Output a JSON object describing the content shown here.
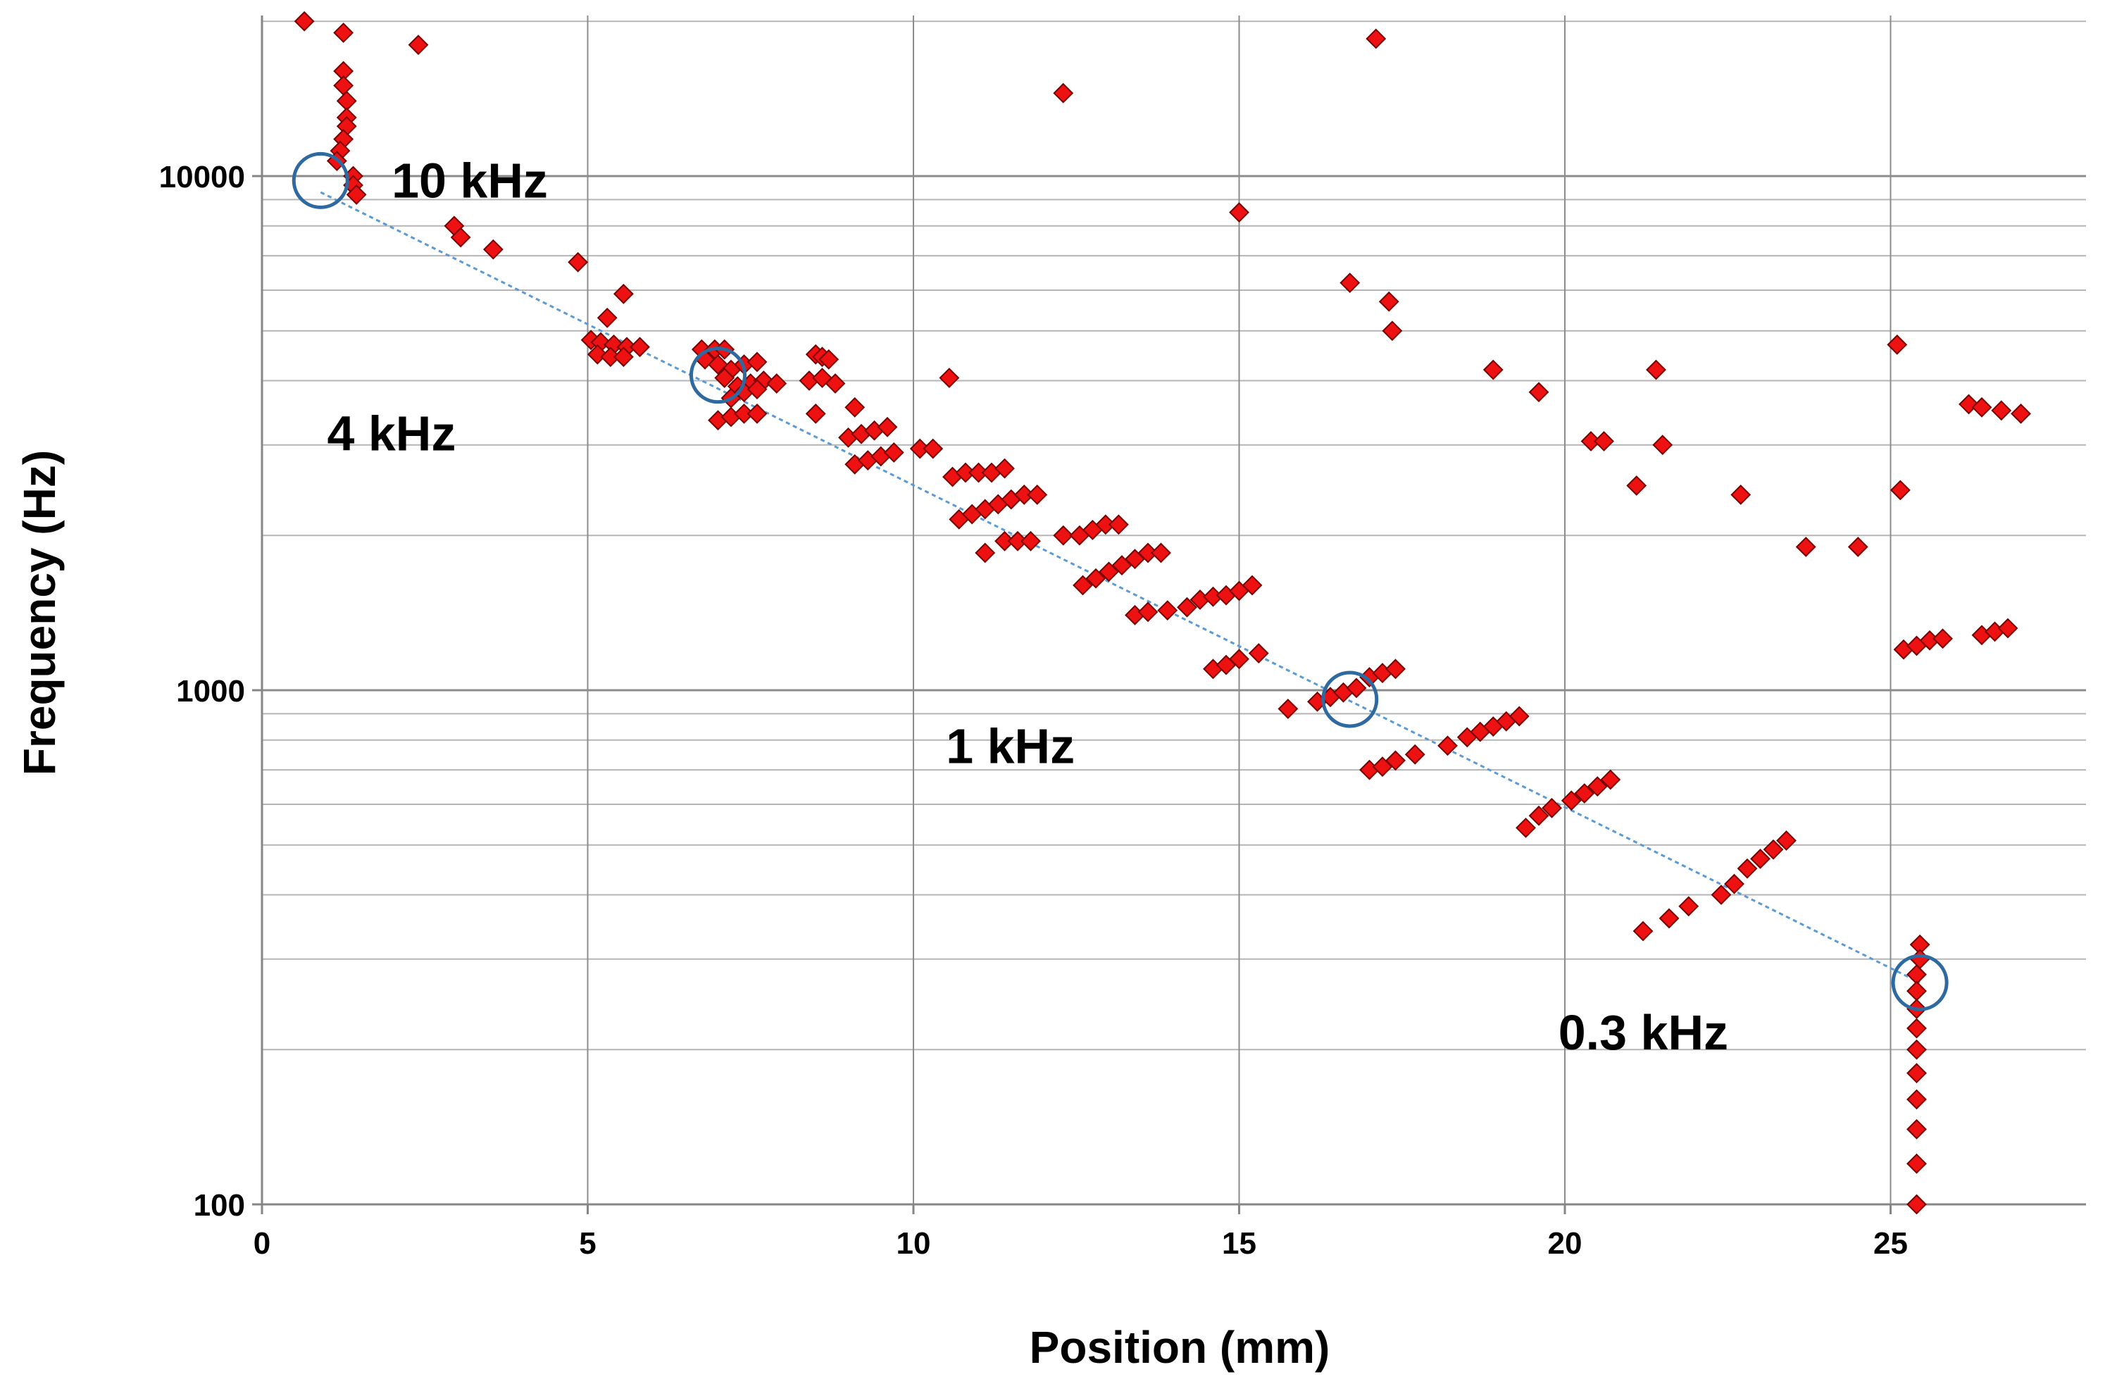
{
  "chart_data": {
    "type": "scatter",
    "xlabel": "Position (mm)",
    "ylabel": "Frequency (Hz)",
    "xlim": [
      0,
      28
    ],
    "ylim": [
      100,
      20000
    ],
    "y_scale": "log",
    "grid": true,
    "x_ticks": [
      "0",
      "5",
      "10",
      "15",
      "20",
      "25"
    ],
    "y_ticks": [
      "100",
      "1000",
      "10000"
    ],
    "marker_color": "#ee1111",
    "marker_edge_color": "#7a0000",
    "circle_color": "#2e6aa0",
    "trend_color": "#5b9bd5",
    "series": [
      {
        "points": [
          [
            0.65,
            20000
          ],
          [
            1.25,
            19000
          ],
          [
            2.4,
            18000
          ],
          [
            1.25,
            16000
          ],
          [
            1.25,
            15000
          ],
          [
            1.3,
            14000
          ],
          [
            1.3,
            13000
          ],
          [
            1.3,
            12500
          ],
          [
            1.25,
            11800
          ],
          [
            1.2,
            11200
          ],
          [
            1.15,
            10700
          ],
          [
            1.4,
            10000
          ],
          [
            1.4,
            9600
          ],
          [
            1.45,
            9200
          ],
          [
            2.95,
            8000
          ],
          [
            3.05,
            7600
          ],
          [
            3.55,
            7200
          ],
          [
            4.85,
            6800
          ],
          [
            5.55,
            5900
          ],
          [
            5.3,
            5300
          ],
          [
            5.05,
            4800
          ],
          [
            5.2,
            4750
          ],
          [
            5.4,
            4700
          ],
          [
            5.6,
            4650
          ],
          [
            5.8,
            4650
          ],
          [
            5.15,
            4500
          ],
          [
            5.35,
            4450
          ],
          [
            5.55,
            4450
          ],
          [
            6.75,
            4600
          ],
          [
            6.95,
            4600
          ],
          [
            7.1,
            4600
          ],
          [
            6.8,
            4400
          ],
          [
            7.0,
            4300
          ],
          [
            7.2,
            4200
          ],
          [
            7.4,
            4300
          ],
          [
            7.6,
            4350
          ],
          [
            7.1,
            4050
          ],
          [
            7.3,
            3900
          ],
          [
            7.5,
            3950
          ],
          [
            7.7,
            4000
          ],
          [
            7.9,
            3950
          ],
          [
            7.2,
            3700
          ],
          [
            7.4,
            3800
          ],
          [
            7.6,
            3850
          ],
          [
            7.0,
            3350
          ],
          [
            7.2,
            3400
          ],
          [
            7.4,
            3450
          ],
          [
            7.6,
            3450
          ],
          [
            8.5,
            4500
          ],
          [
            8.6,
            4450
          ],
          [
            8.7,
            4400
          ],
          [
            8.4,
            4000
          ],
          [
            8.6,
            4050
          ],
          [
            8.8,
            3950
          ],
          [
            8.5,
            3450
          ],
          [
            9.1,
            3550
          ],
          [
            9.0,
            3100
          ],
          [
            9.2,
            3150
          ],
          [
            9.4,
            3200
          ],
          [
            9.6,
            3250
          ],
          [
            9.1,
            2750
          ],
          [
            9.3,
            2800
          ],
          [
            9.5,
            2850
          ],
          [
            9.7,
            2900
          ],
          [
            10.1,
            2950
          ],
          [
            10.3,
            2950
          ],
          [
            10.55,
            4050
          ],
          [
            10.6,
            2600
          ],
          [
            10.8,
            2650
          ],
          [
            11.0,
            2650
          ],
          [
            11.2,
            2650
          ],
          [
            11.4,
            2700
          ],
          [
            10.7,
            2150
          ],
          [
            10.9,
            2200
          ],
          [
            11.1,
            2250
          ],
          [
            11.3,
            2300
          ],
          [
            11.5,
            2350
          ],
          [
            11.7,
            2400
          ],
          [
            11.9,
            2400
          ],
          [
            11.1,
            1850
          ],
          [
            11.4,
            1950
          ],
          [
            11.6,
            1950
          ],
          [
            11.8,
            1950
          ],
          [
            12.3,
            14500
          ],
          [
            12.3,
            2000
          ],
          [
            12.55,
            2000
          ],
          [
            12.75,
            2050
          ],
          [
            12.95,
            2100
          ],
          [
            13.15,
            2100
          ],
          [
            12.6,
            1600
          ],
          [
            12.8,
            1650
          ],
          [
            13.0,
            1700
          ],
          [
            13.2,
            1750
          ],
          [
            13.4,
            1800
          ],
          [
            13.6,
            1850
          ],
          [
            13.8,
            1850
          ],
          [
            13.4,
            1400
          ],
          [
            13.6,
            1420
          ],
          [
            13.9,
            1430
          ],
          [
            14.2,
            1450
          ],
          [
            14.4,
            1500
          ],
          [
            14.6,
            1520
          ],
          [
            14.8,
            1530
          ],
          [
            15.0,
            1560
          ],
          [
            15.2,
            1600
          ],
          [
            14.6,
            1100
          ],
          [
            14.8,
            1120
          ],
          [
            15.0,
            1150
          ],
          [
            15.3,
            1180
          ],
          [
            15.0,
            8500
          ],
          [
            15.75,
            920
          ],
          [
            16.2,
            950
          ],
          [
            16.4,
            970
          ],
          [
            16.6,
            990
          ],
          [
            16.8,
            1010
          ],
          [
            17.0,
            1060
          ],
          [
            17.2,
            1080
          ],
          [
            17.4,
            1100
          ],
          [
            16.7,
            6200
          ],
          [
            17.1,
            18500
          ],
          [
            17.3,
            5700
          ],
          [
            17.35,
            5000
          ],
          [
            17.0,
            700
          ],
          [
            17.2,
            710
          ],
          [
            17.4,
            730
          ],
          [
            17.7,
            750
          ],
          [
            18.2,
            780
          ],
          [
            18.5,
            810
          ],
          [
            18.7,
            830
          ],
          [
            18.9,
            850
          ],
          [
            19.1,
            870
          ],
          [
            19.3,
            890
          ],
          [
            18.9,
            4200
          ],
          [
            19.6,
            3800
          ],
          [
            19.4,
            540
          ],
          [
            19.6,
            570
          ],
          [
            19.8,
            590
          ],
          [
            20.1,
            610
          ],
          [
            20.3,
            630
          ],
          [
            20.5,
            650
          ],
          [
            20.7,
            670
          ],
          [
            20.4,
            3050
          ],
          [
            20.6,
            3050
          ],
          [
            21.1,
            2500
          ],
          [
            21.4,
            4200
          ],
          [
            21.5,
            3000
          ],
          [
            21.2,
            340
          ],
          [
            21.6,
            360
          ],
          [
            21.9,
            380
          ],
          [
            22.4,
            400
          ],
          [
            22.6,
            420
          ],
          [
            22.8,
            450
          ],
          [
            23.0,
            470
          ],
          [
            23.2,
            490
          ],
          [
            23.4,
            510
          ],
          [
            22.7,
            2400
          ],
          [
            23.7,
            1900
          ],
          [
            24.5,
            1900
          ],
          [
            25.1,
            4700
          ],
          [
            25.15,
            2450
          ],
          [
            25.2,
            1200
          ],
          [
            25.4,
            1220
          ],
          [
            25.6,
            1250
          ],
          [
            25.8,
            1260
          ],
          [
            26.4,
            1280
          ],
          [
            26.6,
            1300
          ],
          [
            26.8,
            1320
          ],
          [
            26.2,
            3600
          ],
          [
            26.4,
            3550
          ],
          [
            26.7,
            3500
          ],
          [
            27.0,
            3450
          ],
          [
            25.45,
            320
          ],
          [
            25.45,
            300
          ],
          [
            25.4,
            280
          ],
          [
            25.4,
            260
          ],
          [
            25.4,
            240
          ],
          [
            25.4,
            220
          ],
          [
            25.4,
            200
          ],
          [
            25.4,
            180
          ],
          [
            25.4,
            160
          ],
          [
            25.4,
            140
          ],
          [
            25.4,
            120
          ],
          [
            25.4,
            100
          ]
        ]
      }
    ],
    "trend_line": [
      [
        0.9,
        9300
      ],
      [
        25.45,
        270
      ]
    ],
    "annotations": [
      {
        "label": "10 kHz",
        "x": 0.9,
        "y": 9800,
        "dx": 0.55,
        "dy_factor": 1.0
      },
      {
        "label": "4 kHz",
        "x": 7.0,
        "y": 4100,
        "dx": -6.0,
        "dy_factor": 0.77
      },
      {
        "label": "1 kHz",
        "x": 16.7,
        "y": 960,
        "dx": -6.2,
        "dy_factor": 0.81
      },
      {
        "label": "0.3 kHz",
        "x": 25.45,
        "y": 270,
        "dx": -5.55,
        "dy_factor": 0.8
      }
    ]
  }
}
